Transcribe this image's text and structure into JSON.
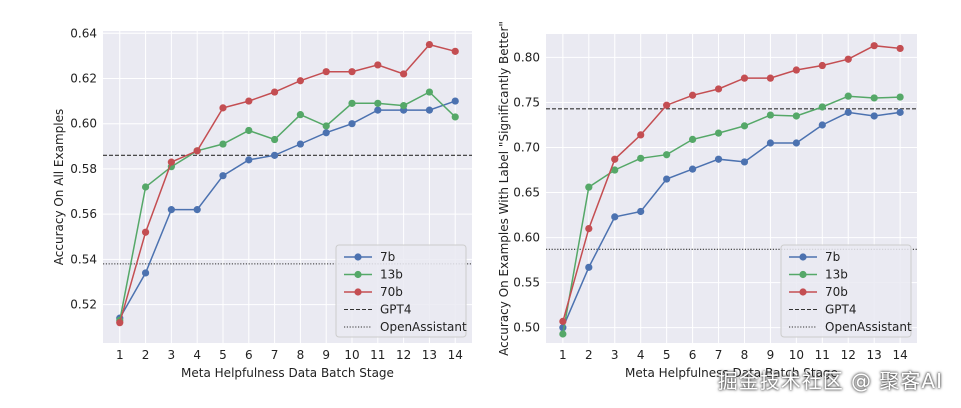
{
  "chart_data": [
    {
      "type": "line",
      "ylabel": "Accuracy On All Examples",
      "xlabel": "Meta Helpfulness Data Batch Stage",
      "x": [
        1,
        2,
        3,
        4,
        5,
        6,
        7,
        8,
        9,
        10,
        11,
        12,
        13,
        14
      ],
      "xlim": [
        0.35,
        14.65
      ],
      "ylim": [
        0.503,
        0.641
      ],
      "yticks": [
        0.52,
        0.54,
        0.56,
        0.58,
        0.6,
        0.62,
        0.64
      ],
      "ytick_labels": [
        "0.52",
        "0.54",
        "0.56",
        "0.58",
        "0.60",
        "0.62",
        "0.64"
      ],
      "grid": true,
      "legend_position": "lower-right",
      "series": [
        {
          "name": "7b",
          "color": "#4c72b0",
          "values": [
            0.514,
            0.534,
            0.562,
            0.562,
            0.577,
            0.584,
            0.586,
            0.591,
            0.596,
            0.6,
            0.606,
            0.606,
            0.606,
            0.61
          ]
        },
        {
          "name": "13b",
          "color": "#55a868",
          "values": [
            0.513,
            0.572,
            0.581,
            0.588,
            0.591,
            0.597,
            0.593,
            0.604,
            0.599,
            0.609,
            0.609,
            0.608,
            0.614,
            0.603
          ]
        },
        {
          "name": "70b",
          "color": "#c44e52",
          "values": [
            0.512,
            0.552,
            0.583,
            0.588,
            0.607,
            0.61,
            0.614,
            0.619,
            0.623,
            0.623,
            0.626,
            0.622,
            0.635,
            0.632
          ]
        }
      ],
      "reference_lines": [
        {
          "name": "GPT4",
          "value": 0.586,
          "style": "dashed",
          "color": "#333333"
        },
        {
          "name": "OpenAssistant",
          "value": 0.538,
          "style": "dotted",
          "color": "#333333"
        }
      ]
    },
    {
      "type": "line",
      "ylabel": "Accuracy On Examples With Label \"Significantly Better\"",
      "xlabel": "Meta Helpfulness Data Batch Stage",
      "x": [
        1,
        2,
        3,
        4,
        5,
        6,
        7,
        8,
        9,
        10,
        11,
        12,
        13,
        14
      ],
      "xlim": [
        0.35,
        14.65
      ],
      "ylim": [
        0.483,
        0.826
      ],
      "yticks": [
        0.5,
        0.55,
        0.6,
        0.65,
        0.7,
        0.75,
        0.8
      ],
      "ytick_labels": [
        "0.50",
        "0.55",
        "0.60",
        "0.65",
        "0.70",
        "0.75",
        "0.80"
      ],
      "grid": true,
      "legend_position": "lower-right",
      "series": [
        {
          "name": "7b",
          "color": "#4c72b0",
          "values": [
            0.5,
            0.567,
            0.623,
            0.629,
            0.665,
            0.676,
            0.687,
            0.684,
            0.705,
            0.705,
            0.725,
            0.739,
            0.735,
            0.739
          ]
        },
        {
          "name": "13b",
          "color": "#55a868",
          "values": [
            0.493,
            0.656,
            0.675,
            0.688,
            0.692,
            0.709,
            0.716,
            0.724,
            0.736,
            0.735,
            0.745,
            0.757,
            0.755,
            0.756
          ]
        },
        {
          "name": "70b",
          "color": "#c44e52",
          "values": [
            0.507,
            0.61,
            0.687,
            0.714,
            0.747,
            0.758,
            0.765,
            0.777,
            0.777,
            0.786,
            0.791,
            0.798,
            0.813,
            0.81
          ]
        }
      ],
      "reference_lines": [
        {
          "name": "GPT4",
          "value": 0.743,
          "style": "dashed",
          "color": "#333333"
        },
        {
          "name": "OpenAssistant",
          "value": 0.587,
          "style": "dotted",
          "color": "#333333"
        }
      ]
    }
  ],
  "watermark": "掘金技术社区 @ 聚客AI"
}
